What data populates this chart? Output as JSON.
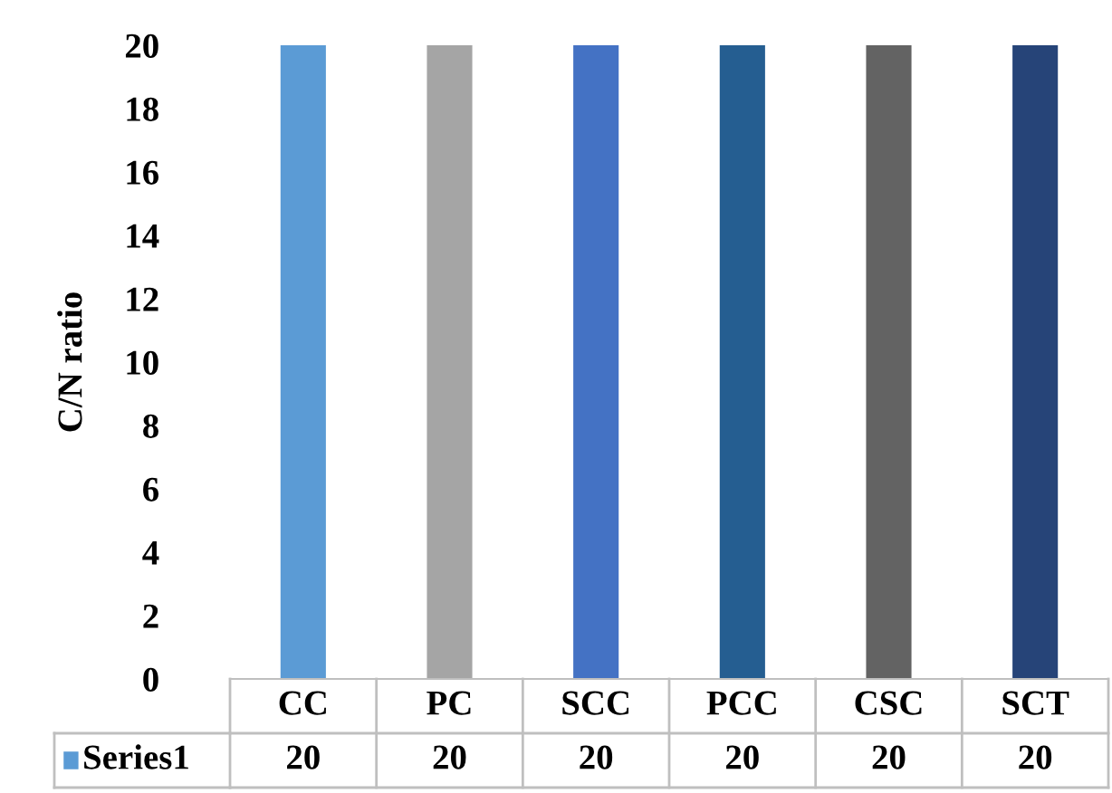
{
  "chart_data": {
    "type": "bar",
    "ylabel": "C/N ratio",
    "categories": [
      "CC",
      "PC",
      "SCC",
      "PCC",
      "CSC",
      "SCT"
    ],
    "series": [
      {
        "name": "Series1",
        "color": "#5b9bd5",
        "colors": [
          "#5b9bd5",
          "#a5a5a5",
          "#4472c4",
          "#255e91",
          "#636363",
          "#264478"
        ],
        "values": [
          20,
          20,
          20,
          20,
          20,
          20
        ]
      }
    ],
    "ylim": [
      0,
      20
    ],
    "yticks": [
      0,
      2,
      4,
      6,
      8,
      10,
      12,
      14,
      16,
      18,
      20
    ],
    "grid": false,
    "legend": "bottom",
    "data_labels": true
  }
}
